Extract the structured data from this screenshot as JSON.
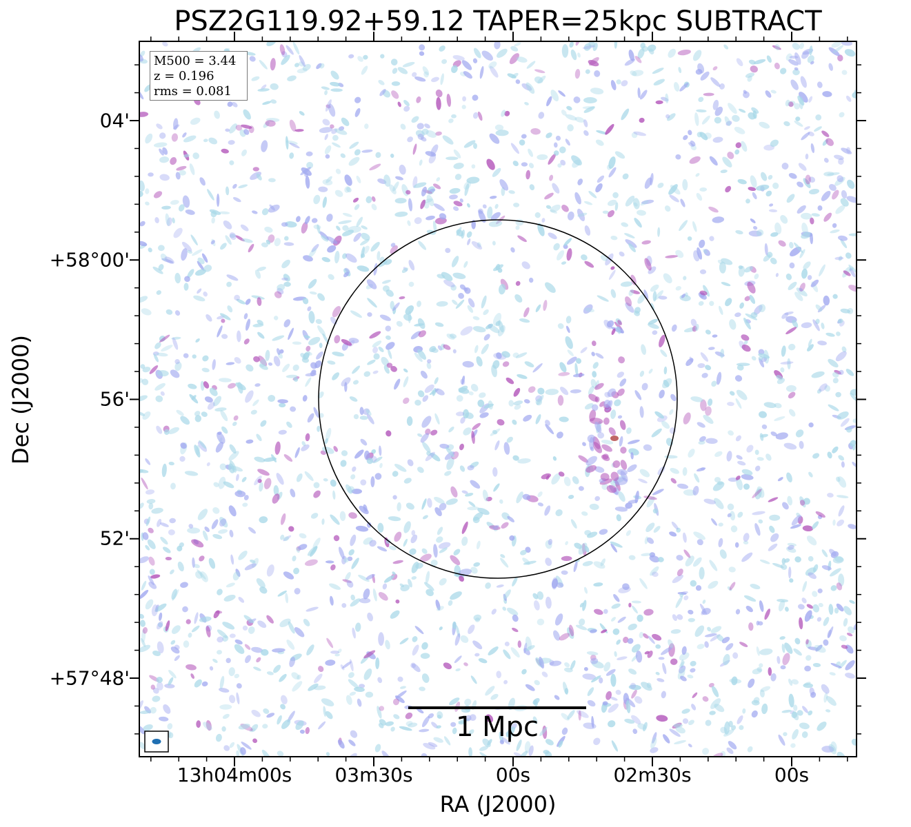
{
  "title": "PSZ2G119.92+59.12 TAPER=25kpc SUBTRACT",
  "axes": {
    "xlabel": "RA (J2000)",
    "ylabel": "Dec (J2000)",
    "xticks": [
      "13h04m00s",
      "03m30s",
      "00s",
      "02m30s",
      "00s"
    ],
    "yticks": [
      "04'",
      "+58°00'",
      "56'",
      "52'",
      "+57°48'"
    ]
  },
  "info": {
    "m500": "M500 = 3.44",
    "z": "z = 0.196",
    "rms": "rms = 0.081"
  },
  "scalebar": {
    "label": "1 Mpc"
  },
  "colors": {
    "low": "#a8d8e8",
    "mid": "#a0a8f0",
    "high": "#b050b8",
    "peak": "#b04040",
    "circle": "#000000",
    "beam": "#1f6fb2"
  }
}
